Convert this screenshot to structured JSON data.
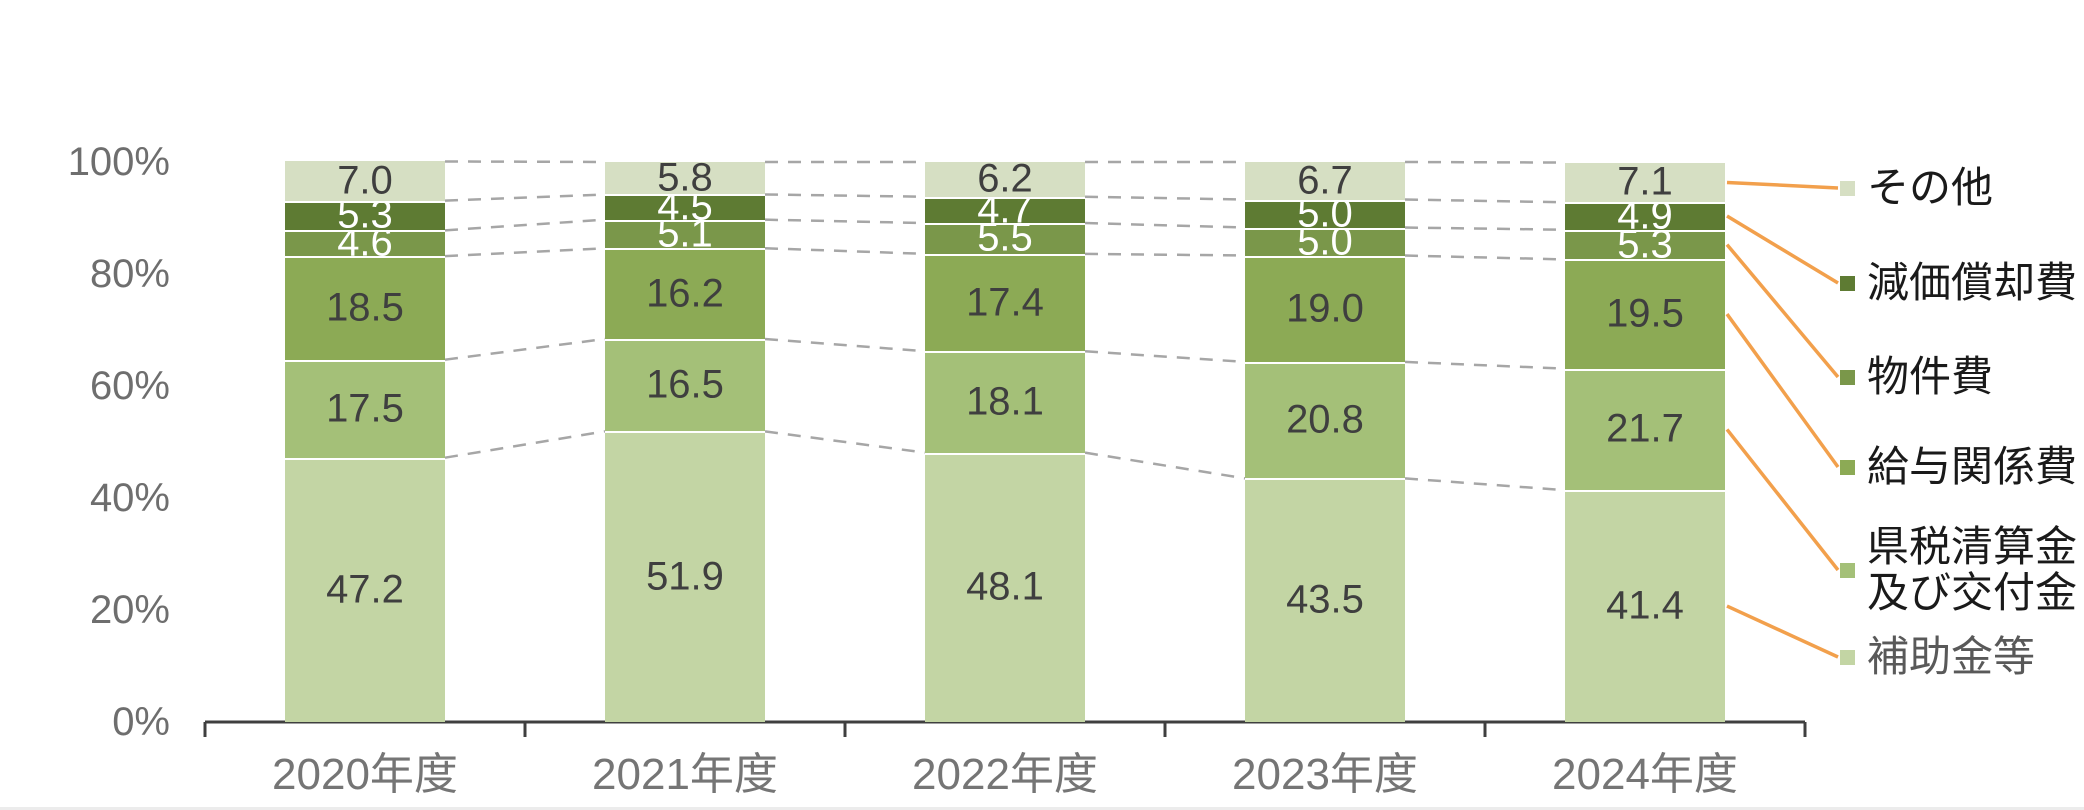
{
  "chart_data": {
    "type": "bar",
    "subtype": "100-percent-stacked-column",
    "categories": [
      "2020年度",
      "2021年度",
      "2022年度",
      "2023年度",
      "2024年度"
    ],
    "series": [
      {
        "name": "補助金等",
        "color": "#C3D5A4",
        "value_label_color": "#3F3F3F",
        "values": [
          47.2,
          51.9,
          48.1,
          43.5,
          41.4
        ]
      },
      {
        "name": "県税清算金及び交付金",
        "color": "#A4C078",
        "value_label_color": "#3F3F3F",
        "values": [
          17.5,
          16.5,
          18.1,
          20.8,
          21.7
        ]
      },
      {
        "name": "給与関係費",
        "color": "#8CAA55",
        "value_label_color": "#3F3F3F",
        "values": [
          18.5,
          16.2,
          17.4,
          19.0,
          19.5
        ]
      },
      {
        "name": "物件費",
        "color": "#7A974A",
        "value_label_color": "#FFFFFF",
        "values": [
          4.6,
          5.1,
          5.5,
          5.0,
          5.3
        ]
      },
      {
        "name": "減価償却費",
        "color": "#5E7B33",
        "value_label_color": "#FFFFFF",
        "values": [
          5.3,
          4.5,
          4.7,
          5.0,
          4.9
        ]
      },
      {
        "name": "その他",
        "color": "#D6DFC3",
        "value_label_color": "#3F3F3F",
        "values": [
          7.0,
          5.8,
          6.2,
          6.7,
          7.1
        ]
      }
    ],
    "y_axis": {
      "min": 0,
      "max": 100,
      "tick_labels_top_down": [
        "100%",
        "80%",
        "60%",
        "40%",
        "20%",
        "0%"
      ],
      "tick_label_color": "#6E6E6E"
    },
    "x_axis": {
      "label_color": "#757575",
      "axis_color": "#3F3F3F"
    },
    "legend": {
      "position": "right",
      "items": [
        {
          "label_lines": [
            "その他"
          ],
          "series_index": 5,
          "text_color": "#1A1A1A"
        },
        {
          "label_lines": [
            "減価償却費"
          ],
          "series_index": 4,
          "text_color": "#1A1A1A"
        },
        {
          "label_lines": [
            "物件費"
          ],
          "series_index": 3,
          "text_color": "#1A1A1A"
        },
        {
          "label_lines": [
            "給与関係費"
          ],
          "series_index": 2,
          "text_color": "#1A1A1A"
        },
        {
          "label_lines": [
            "県税清算金",
            "及び交付金"
          ],
          "series_index": 1,
          "text_color": "#1A1A1A"
        },
        {
          "label_lines": [
            "補助金等"
          ],
          "series_index": 0,
          "text_color": "#595959"
        }
      ]
    },
    "style": {
      "connector_line_color": "#A6A6A6",
      "connector_dashed": true,
      "leader_line_color": "#F2A04C",
      "grid": false
    }
  }
}
